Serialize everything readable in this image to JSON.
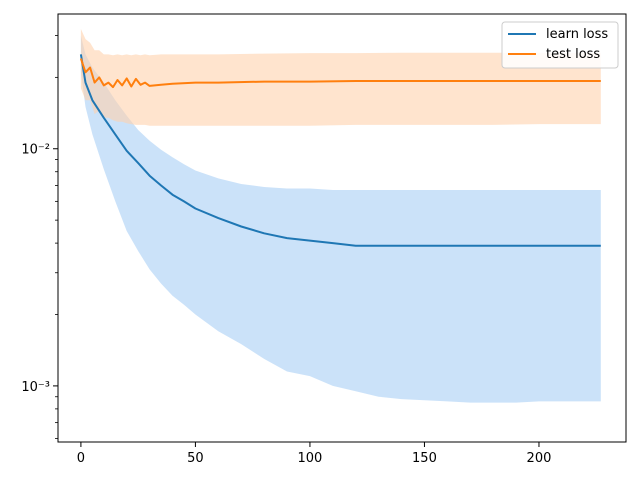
{
  "chart_data": {
    "type": "line",
    "title": "",
    "xlabel": "",
    "ylabel": "",
    "yscale": "log",
    "xlim": [
      -10,
      238
    ],
    "ylim": [
      0.00058,
      0.037
    ],
    "x_ticks": [
      0,
      50,
      100,
      150,
      200
    ],
    "x_tick_labels": [
      "0",
      "50",
      "100",
      "150",
      "200"
    ],
    "y_ticks": [
      0.001,
      0.01
    ],
    "y_tick_labels": [
      "10⁻³",
      "10⁻²"
    ],
    "grid": false,
    "legend": "top-right",
    "series": [
      {
        "name": "learn loss",
        "color": "#1f77b4",
        "band_color": "#a8cff5",
        "x": [
          0,
          2,
          5,
          10,
          15,
          20,
          25,
          30,
          35,
          40,
          45,
          50,
          60,
          70,
          80,
          90,
          100,
          110,
          120,
          130,
          140,
          150,
          160,
          170,
          180,
          190,
          200,
          210,
          220,
          227
        ],
        "mean": [
          0.025,
          0.019,
          0.016,
          0.0135,
          0.0115,
          0.0098,
          0.0087,
          0.0077,
          0.007,
          0.0064,
          0.006,
          0.0056,
          0.0051,
          0.0047,
          0.0044,
          0.0042,
          0.0041,
          0.004,
          0.0039,
          0.0039,
          0.0039,
          0.0039,
          0.0039,
          0.0039,
          0.0039,
          0.0039,
          0.0039,
          0.0039,
          0.0039,
          0.0039
        ],
        "lower": [
          0.021,
          0.015,
          0.0115,
          0.0082,
          0.006,
          0.0045,
          0.0037,
          0.0031,
          0.0027,
          0.0024,
          0.0022,
          0.002,
          0.0017,
          0.0015,
          0.0013,
          0.00115,
          0.0011,
          0.001,
          0.00095,
          0.0009,
          0.00088,
          0.00087,
          0.00086,
          0.00085,
          0.00085,
          0.00085,
          0.00086,
          0.00086,
          0.00086,
          0.00086
        ],
        "upper": [
          0.03,
          0.025,
          0.022,
          0.019,
          0.016,
          0.0138,
          0.012,
          0.0108,
          0.0099,
          0.0092,
          0.0086,
          0.0081,
          0.0075,
          0.0071,
          0.0069,
          0.0068,
          0.0068,
          0.0067,
          0.0067,
          0.0067,
          0.0067,
          0.0067,
          0.0067,
          0.0067,
          0.0067,
          0.0067,
          0.0067,
          0.0067,
          0.0067,
          0.0067
        ]
      },
      {
        "name": "test loss",
        "color": "#ff7f0e",
        "band_color": "#ffd2ad",
        "x": [
          0,
          2,
          4,
          6,
          8,
          10,
          12,
          14,
          16,
          18,
          20,
          22,
          24,
          26,
          28,
          30,
          35,
          40,
          50,
          60,
          80,
          100,
          120,
          140,
          160,
          180,
          200,
          220,
          227
        ],
        "mean": [
          0.024,
          0.021,
          0.022,
          0.019,
          0.02,
          0.0185,
          0.019,
          0.0182,
          0.0195,
          0.0185,
          0.0198,
          0.0183,
          0.0197,
          0.0186,
          0.019,
          0.0184,
          0.0186,
          0.0188,
          0.019,
          0.019,
          0.0192,
          0.0192,
          0.0193,
          0.0193,
          0.0193,
          0.0193,
          0.0193,
          0.0193,
          0.0193
        ],
        "lower": [
          0.018,
          0.016,
          0.016,
          0.014,
          0.0145,
          0.0135,
          0.0135,
          0.0132,
          0.013,
          0.013,
          0.0128,
          0.0127,
          0.0126,
          0.0126,
          0.0126,
          0.0125,
          0.0125,
          0.0125,
          0.0125,
          0.0125,
          0.0125,
          0.0125,
          0.0126,
          0.0126,
          0.0126,
          0.0126,
          0.0127,
          0.0127,
          0.0127
        ],
        "upper": [
          0.032,
          0.029,
          0.028,
          0.026,
          0.026,
          0.025,
          0.025,
          0.0248,
          0.025,
          0.0248,
          0.025,
          0.0248,
          0.025,
          0.0248,
          0.025,
          0.0248,
          0.025,
          0.025,
          0.025,
          0.025,
          0.0252,
          0.0253,
          0.0253,
          0.0254,
          0.0254,
          0.0254,
          0.0254,
          0.0254,
          0.0254
        ]
      }
    ]
  }
}
